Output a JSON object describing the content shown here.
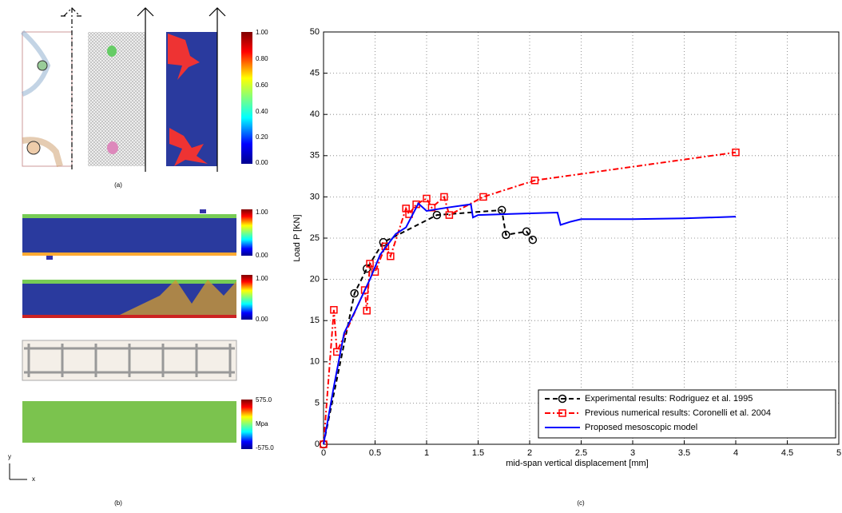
{
  "chart_data": {
    "type": "line",
    "xlabel": "mid-span vertical displacement [mm]",
    "ylabel": "Load P [KN]",
    "xlim": [
      0,
      5
    ],
    "ylim": [
      0,
      50
    ],
    "xticks": [
      0,
      0.5,
      1,
      1.5,
      2,
      2.5,
      3,
      3.5,
      4,
      4.5,
      5
    ],
    "yticks": [
      0,
      5,
      10,
      15,
      20,
      25,
      30,
      35,
      40,
      45,
      50
    ],
    "grid": true,
    "legend": "lower right",
    "series": [
      {
        "name": "Experimental results: Rodriguez et al. 1995",
        "color": "#000000",
        "linestyle": "--",
        "marker": "o",
        "x": [
          0,
          0.3,
          0.42,
          0.58,
          1.1,
          1.73,
          1.77,
          1.97,
          2.03
        ],
        "values": [
          0,
          18.3,
          21.3,
          24.5,
          27.8,
          28.4,
          25.4,
          25.8,
          24.8
        ]
      },
      {
        "name": "Previous numerical results: Coronelli et al. 2004",
        "color": "#ff0000",
        "linestyle": "-.",
        "marker": "s",
        "x": [
          0,
          0.1,
          0.13,
          0.4,
          0.42,
          0.45,
          0.5,
          0.6,
          0.65,
          0.8,
          0.83,
          0.9,
          1.0,
          1.05,
          1.17,
          1.22,
          1.55,
          2.05,
          4.0
        ],
        "values": [
          0,
          16.3,
          11.2,
          18.7,
          16.2,
          21.9,
          20.9,
          24,
          22.8,
          28.6,
          27.9,
          29.1,
          29.8,
          28.7,
          30,
          27.8,
          30,
          32,
          35.4
        ]
      },
      {
        "name": "Proposed mesoscopic model",
        "color": "#0000ff",
        "linestyle": "-",
        "marker": null,
        "x": [
          0,
          0.1,
          0.2,
          0.3,
          0.45,
          0.55,
          0.7,
          0.8,
          0.92,
          1.0,
          1.2,
          1.43,
          1.45,
          1.5,
          2.0,
          2.27,
          2.3,
          2.4,
          2.5,
          3.0,
          3.5,
          4.0
        ],
        "values": [
          0,
          7,
          13.5,
          16,
          20,
          23,
          25.5,
          26.3,
          29.2,
          28.3,
          28.7,
          29.1,
          27.5,
          27.8,
          28,
          28.1,
          26.6,
          27,
          27.3,
          27.3,
          27.4,
          27.6
        ]
      }
    ]
  },
  "panel_labels": [
    "(a)",
    "(b)",
    "(c)"
  ],
  "axes_symbol": {
    "y": "y",
    "x": "x"
  },
  "colorbar_a": [
    "1.00",
    "0.80",
    "0.60",
    "0.40",
    "0.20",
    "0.00"
  ],
  "colorbar_b1": [
    "1.00",
    "0.00"
  ],
  "colorbar_b2": [
    "1.00",
    "0.00"
  ],
  "colorbar_b4": [
    "575.0",
    "Mpa",
    "-575.0"
  ]
}
